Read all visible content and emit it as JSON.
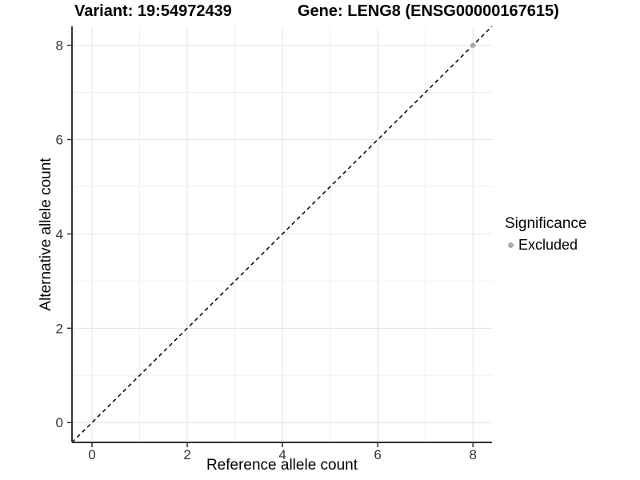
{
  "chart_data": {
    "type": "scatter",
    "title_left": "Variant: 19:54972439",
    "title_right": "Gene: LENG8 (ENSG00000167615)",
    "xlabel": "Reference allele count",
    "ylabel": "Alternative allele count",
    "xlim": [
      -0.42,
      8.4
    ],
    "ylim": [
      -0.42,
      8.4
    ],
    "x_ticks": [
      0,
      2,
      4,
      6,
      8
    ],
    "y_ticks": [
      0,
      2,
      4,
      6,
      8
    ],
    "grid_x": [
      0,
      1,
      2,
      3,
      4,
      5,
      6,
      7,
      8
    ],
    "grid_y": [
      0,
      1,
      2,
      3,
      4,
      5,
      6,
      7,
      8
    ],
    "grid_on": true,
    "grid_major_color": "#e4e4e4",
    "grid_minor_color": "#efefef",
    "axis_line_color": "#333333",
    "tick_label_color": "#333333",
    "reference_line": {
      "type": "identity",
      "style": "dashed",
      "color": "#000000"
    },
    "legend_title": "Significance",
    "legend_position": "right",
    "series": [
      {
        "name": "Excluded",
        "color": "#aaaaaa",
        "points": [
          {
            "x": 8,
            "y": 8
          }
        ]
      }
    ]
  }
}
